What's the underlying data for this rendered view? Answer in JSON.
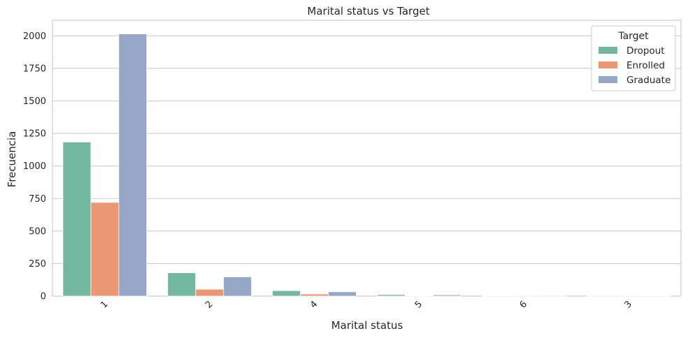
{
  "chart_data": {
    "type": "bar",
    "title": "Marital status vs Target",
    "xlabel": "Marital status",
    "ylabel": "Frecuencia",
    "categories": [
      "1",
      "2",
      "4",
      "5",
      "6",
      "3"
    ],
    "yticks": [
      0,
      250,
      500,
      750,
      1000,
      1250,
      1500,
      1750,
      2000
    ],
    "ylim": [
      0,
      2120
    ],
    "grid": true,
    "legend": {
      "title": "Target",
      "placement": "top-right"
    },
    "series": [
      {
        "name": "Dropout",
        "color": "#72b7a0",
        "values": [
          1184,
          179,
          42,
          11,
          4,
          1
        ]
      },
      {
        "name": "Enrolled",
        "color": "#eb9773",
        "values": [
          720,
          53,
          16,
          4,
          1,
          1
        ]
      },
      {
        "name": "Graduate",
        "color": "#95a6c7",
        "values": [
          2015,
          148,
          33,
          10,
          5,
          3
        ]
      }
    ]
  }
}
